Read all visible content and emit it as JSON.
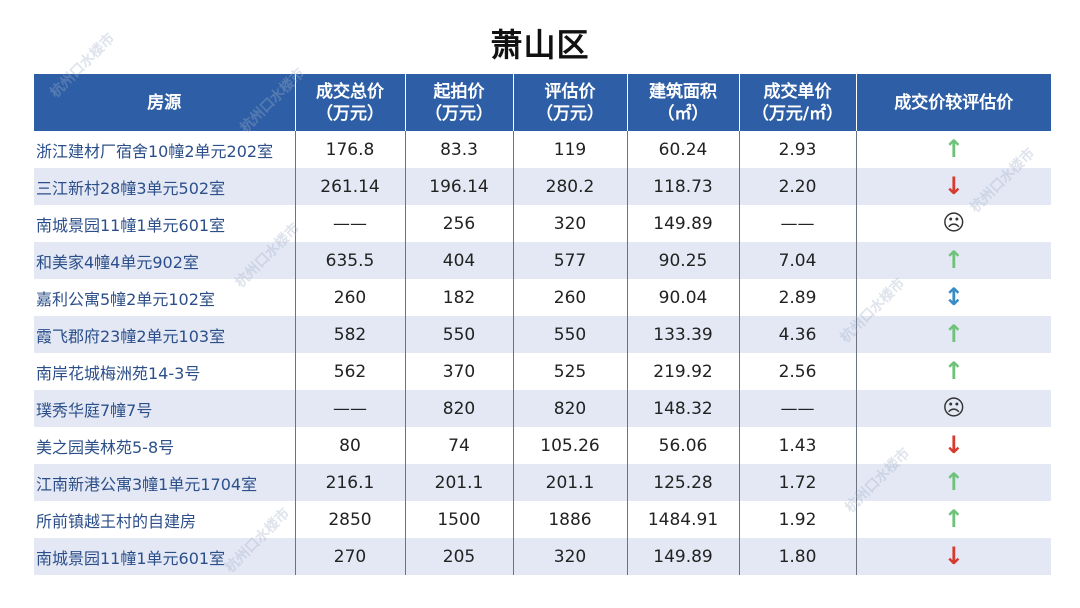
{
  "title": "萧山区",
  "watermark": "杭州口水楼市",
  "headers": [
    {
      "line1": "房源",
      "line2": ""
    },
    {
      "line1": "成交总价",
      "line2": "（万元）"
    },
    {
      "line1": "起拍价",
      "line2": "（万元）"
    },
    {
      "line1": "评估价",
      "line2": "（万元）"
    },
    {
      "line1": "建筑面积",
      "line2": "（㎡）"
    },
    {
      "line1": "成交单价",
      "line2": "（万元/㎡）"
    },
    {
      "line1": "成交价较评估价",
      "line2": ""
    }
  ],
  "rows": [
    {
      "name": "浙江建材厂宿舍10幢2单元202室",
      "total": "176.8",
      "start": "83.3",
      "eval": "119",
      "area": "60.24",
      "unit": "2.93",
      "trend_icon": "up-arrow-icon",
      "trend_glyph": "↑"
    },
    {
      "name": "三江新村28幢3单元502室",
      "total": "261.14",
      "start": "196.14",
      "eval": "280.2",
      "area": "118.73",
      "unit": "2.20",
      "trend_icon": "down-arrow-icon",
      "trend_glyph": "↓"
    },
    {
      "name": "南城景园11幢1单元601室",
      "total": "——",
      "start": "256",
      "eval": "320",
      "area": "149.89",
      "unit": "——",
      "trend_icon": "sad-face-icon",
      "trend_glyph": "☹"
    },
    {
      "name": "和美家4幢4单元902室",
      "total": "635.5",
      "start": "404",
      "eval": "577",
      "area": "90.25",
      "unit": "7.04",
      "trend_icon": "up-arrow-icon",
      "trend_glyph": "↑"
    },
    {
      "name": "嘉利公寓5幢2单元102室",
      "total": "260",
      "start": "182",
      "eval": "260",
      "area": "90.04",
      "unit": "2.89",
      "trend_icon": "up-down-arrow-icon",
      "trend_glyph": "↕"
    },
    {
      "name": "霞飞郡府23幢2单元103室",
      "total": "582",
      "start": "550",
      "eval": "550",
      "area": "133.39",
      "unit": "4.36",
      "trend_icon": "up-arrow-icon",
      "trend_glyph": "↑"
    },
    {
      "name": "南岸花城梅洲苑14-3号",
      "total": "562",
      "start": "370",
      "eval": "525",
      "area": "219.92",
      "unit": "2.56",
      "trend_icon": "up-arrow-icon",
      "trend_glyph": "↑"
    },
    {
      "name": "璞秀华庭7幢7号",
      "total": "——",
      "start": "820",
      "eval": "820",
      "area": "148.32",
      "unit": "——",
      "trend_icon": "sad-face-icon",
      "trend_glyph": "☹"
    },
    {
      "name": "美之园美林苑5-8号",
      "total": "80",
      "start": "74",
      "eval": "105.26",
      "area": "56.06",
      "unit": "1.43",
      "trend_icon": "down-arrow-icon",
      "trend_glyph": "↓"
    },
    {
      "name": "江南新港公寓3幢1单元1704室",
      "total": "216.1",
      "start": "201.1",
      "eval": "201.1",
      "area": "125.28",
      "unit": "1.72",
      "trend_icon": "up-arrow-icon",
      "trend_glyph": "↑"
    },
    {
      "name": "所前镇越王村的自建房",
      "total": "2850",
      "start": "1500",
      "eval": "1886",
      "area": "1484.91",
      "unit": "1.92",
      "trend_icon": "up-arrow-icon",
      "trend_glyph": "↑"
    },
    {
      "name": "南城景园11幢1单元601室",
      "total": "270",
      "start": "205",
      "eval": "320",
      "area": "149.89",
      "unit": "1.80",
      "trend_icon": "down-arrow-icon",
      "trend_glyph": "↓"
    }
  ],
  "colors": {
    "header_bg": "#2e5fa6",
    "alt_row": "#e3e8f4",
    "up": "#6ec27a",
    "down": "#d63b2f",
    "both": "#3a8cc7"
  }
}
